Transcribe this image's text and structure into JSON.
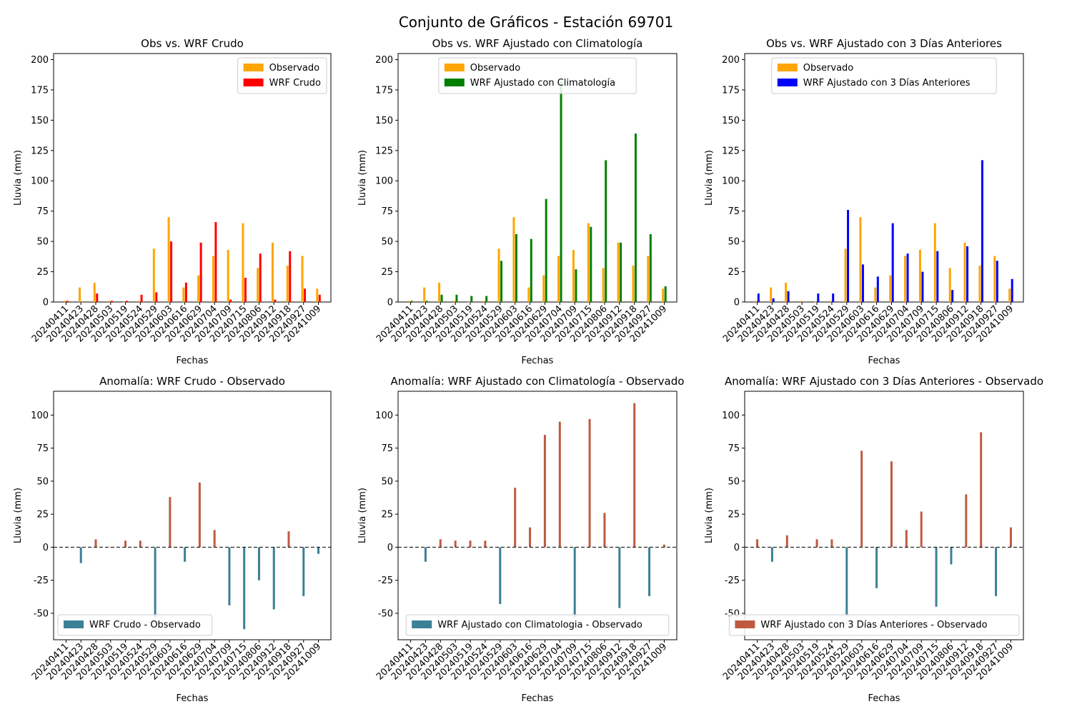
{
  "figure_title": "Conjunto de Gráficos - Estación 69701",
  "tick_labels": [
    "20240411",
    "20240423",
    "20240428",
    "20240503",
    "20240519",
    "20240524",
    "20240529",
    "20240603",
    "20240616",
    "20240629",
    "20240704",
    "20240709",
    "20240715",
    "20240806",
    "20240912",
    "20240918",
    "20240927",
    "20241009"
  ],
  "chart_data": [
    {
      "type": "bar",
      "title": "Obs vs. WRF Crudo",
      "xlabel": "Fechas",
      "ylabel": "Lluvia (mm)",
      "ylim": [
        0,
        205
      ],
      "yticks": [
        0,
        25,
        50,
        75,
        100,
        125,
        150,
        175,
        200
      ],
      "legend_position": "upper right",
      "categories": [
        "20240411",
        "20240423",
        "20240428",
        "20240503",
        "20240519",
        "20240524",
        "20240529",
        "20240603",
        "20240616",
        "20240629",
        "20240704",
        "20240709",
        "20240715",
        "20240806",
        "20240912",
        "20240918",
        "20240927",
        "20241009"
      ],
      "series": [
        {
          "name": "Observado",
          "color": "#FFA500",
          "values": [
            1,
            12,
            16,
            1,
            0,
            1,
            44,
            70,
            12,
            22,
            38,
            43,
            65,
            28,
            49,
            30,
            38,
            11
          ]
        },
        {
          "name": "WRF Crudo",
          "color": "#FF0000",
          "values": [
            1,
            0,
            7,
            1,
            1,
            6,
            8,
            50,
            16,
            49,
            66,
            2,
            20,
            40,
            2,
            42,
            11,
            6
          ]
        }
      ]
    },
    {
      "type": "bar",
      "title": "Obs vs. WRF Ajustado con Climatología",
      "xlabel": "Fechas",
      "ylabel": "Lluvia (mm)",
      "ylim": [
        0,
        205
      ],
      "yticks": [
        0,
        25,
        50,
        75,
        100,
        125,
        150,
        175,
        200
      ],
      "legend_position": "upper center",
      "categories": [
        "20240411",
        "20240423",
        "20240428",
        "20240503",
        "20240519",
        "20240524",
        "20240529",
        "20240603",
        "20240616",
        "20240629",
        "20240704",
        "20240709",
        "20240715",
        "20240806",
        "20240912",
        "20240918",
        "20240927",
        "20241009"
      ],
      "series": [
        {
          "name": "Observado",
          "color": "#FFA500",
          "values": [
            1,
            12,
            16,
            1,
            0,
            1,
            44,
            70,
            12,
            22,
            38,
            43,
            65,
            28,
            49,
            30,
            38,
            11
          ]
        },
        {
          "name": "WRF Ajustado con Climatología",
          "color": "#008000",
          "values": [
            1,
            1,
            6,
            6,
            5,
            5,
            34,
            56,
            52,
            85,
            182,
            27,
            62,
            117,
            49,
            139,
            56,
            13
          ]
        }
      ]
    },
    {
      "type": "bar",
      "title": "Obs vs. WRF Ajustado con 3 Días Anteriores",
      "xlabel": "Fechas",
      "ylabel": "Lluvia (mm)",
      "ylim": [
        0,
        205
      ],
      "yticks": [
        0,
        25,
        50,
        75,
        100,
        125,
        150,
        175,
        200
      ],
      "legend_position": "upper center",
      "categories": [
        "20240411",
        "20240423",
        "20240428",
        "20240503",
        "20240519",
        "20240524",
        "20240529",
        "20240603",
        "20240616",
        "20240629",
        "20240704",
        "20240709",
        "20240715",
        "20240806",
        "20240912",
        "20240918",
        "20240927",
        "20241009"
      ],
      "series": [
        {
          "name": "Observado",
          "color": "#FFA500",
          "values": [
            1,
            12,
            16,
            1,
            0,
            1,
            44,
            70,
            12,
            22,
            38,
            43,
            65,
            28,
            49,
            30,
            38,
            11
          ]
        },
        {
          "name": "WRF Ajustado con 3 Días Anteriores",
          "color": "#0000FF",
          "values": [
            7,
            3,
            9,
            0,
            7,
            7,
            76,
            31,
            21,
            65,
            40,
            25,
            42,
            10,
            46,
            117,
            34,
            19
          ]
        }
      ]
    },
    {
      "type": "bar",
      "title": "Anomalía: WRF Crudo - Observado",
      "xlabel": "Fechas",
      "ylabel": "Lluvia (mm)",
      "ylim": [
        -70,
        118
      ],
      "yticks": [
        -50,
        -25,
        0,
        25,
        50,
        75,
        100
      ],
      "reference_line": 0,
      "legend_position": "lower left",
      "categories": [
        "20240411",
        "20240423",
        "20240428",
        "20240503",
        "20240519",
        "20240524",
        "20240529",
        "20240603",
        "20240616",
        "20240629",
        "20240704",
        "20240709",
        "20240715",
        "20240806",
        "20240912",
        "20240918",
        "20240927",
        "20241009"
      ],
      "series": [
        {
          "name": "WRF Crudo - Observado",
          "color": "#3C8096",
          "negative_color": "#3C8096",
          "positive_color": "#BF5A40",
          "values": [
            0,
            -12,
            6,
            0,
            5,
            5,
            -53,
            38,
            -11,
            49,
            13,
            -44,
            -62,
            -25,
            -47,
            12,
            -37,
            -5
          ]
        }
      ]
    },
    {
      "type": "bar",
      "title": "Anomalía: WRF Ajustado con Climatología - Observado",
      "xlabel": "Fechas",
      "ylabel": "Lluvia (mm)",
      "ylim": [
        -70,
        118
      ],
      "yticks": [
        -50,
        -25,
        0,
        25,
        50,
        75,
        100
      ],
      "reference_line": 0,
      "legend_position": "lower center",
      "categories": [
        "20240411",
        "20240423",
        "20240428",
        "20240503",
        "20240519",
        "20240524",
        "20240529",
        "20240603",
        "20240616",
        "20240629",
        "20240704",
        "20240709",
        "20240715",
        "20240806",
        "20240912",
        "20240918",
        "20240927",
        "20241009"
      ],
      "series": [
        {
          "name": "WRF Ajustado con Climatologia - Observado",
          "color": "#3C8096",
          "negative_color": "#3C8096",
          "positive_color": "#BF5A40",
          "values": [
            0,
            -11,
            6,
            5,
            5,
            5,
            -43,
            45,
            15,
            85,
            95,
            -53,
            97,
            26,
            -46,
            109,
            -37,
            2
          ]
        }
      ]
    },
    {
      "type": "bar",
      "title": "Anomalía: WRF Ajustado con 3 Días Anteriores - Observado",
      "xlabel": "Fechas",
      "ylabel": "Lluvia (mm)",
      "ylim": [
        -70,
        118
      ],
      "yticks": [
        -50,
        -25,
        0,
        25,
        50,
        75,
        100
      ],
      "reference_line": 0,
      "legend_position": "lower right",
      "categories": [
        "20240411",
        "20240423",
        "20240428",
        "20240503",
        "20240519",
        "20240524",
        "20240529",
        "20240603",
        "20240616",
        "20240629",
        "20240704",
        "20240709",
        "20240715",
        "20240806",
        "20240912",
        "20240918",
        "20240927",
        "20241009"
      ],
      "series": [
        {
          "name": "WRF Ajustado con 3 Días Anteriores - Observado",
          "color": "#BF5A40",
          "negative_color": "#3C8096",
          "positive_color": "#BF5A40",
          "values": [
            6,
            -11,
            9,
            0,
            6,
            6,
            -52,
            73,
            -31,
            65,
            13,
            27,
            -45,
            -13,
            40,
            87,
            -37,
            15
          ]
        }
      ]
    }
  ]
}
